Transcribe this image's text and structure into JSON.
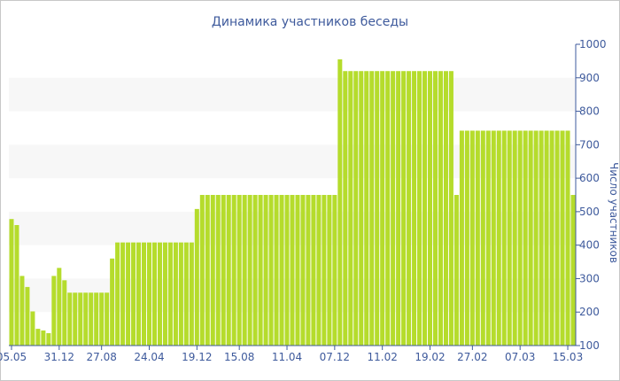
{
  "chart_data": {
    "type": "bar",
    "title": "Динамика участников беседы",
    "xlabel": "",
    "ylabel": "Число участников",
    "ylim": [
      100,
      1000
    ],
    "y_ticks": [
      100,
      200,
      300,
      400,
      500,
      600,
      700,
      800,
      900,
      1000
    ],
    "grid": "alternating horizontal bands",
    "bar_color": "#b5dc2c",
    "band_color": "#f7f7f7",
    "text_color": "#3e5a9c",
    "x_tick_labels": [
      {
        "label": "05.05",
        "index": 0
      },
      {
        "label": "31.12",
        "index": 9
      },
      {
        "label": "27.08",
        "index": 17
      },
      {
        "label": "24.04",
        "index": 26
      },
      {
        "label": "19.12",
        "index": 35
      },
      {
        "label": "15.08",
        "index": 43
      },
      {
        "label": "11.04",
        "index": 52
      },
      {
        "label": "07.12",
        "index": 61
      },
      {
        "label": "11.02",
        "index": 70
      },
      {
        "label": "19.02",
        "index": 79
      },
      {
        "label": "27.02",
        "index": 87
      },
      {
        "label": "07.03",
        "index": 96
      },
      {
        "label": "15.03",
        "index": 105
      }
    ],
    "values": [
      478,
      460,
      308,
      275,
      202,
      150,
      145,
      137,
      308,
      332,
      295,
      258,
      258,
      258,
      258,
      258,
      258,
      258,
      258,
      360,
      408,
      408,
      408,
      408,
      408,
      408,
      408,
      408,
      408,
      408,
      408,
      408,
      408,
      408,
      408,
      508,
      550,
      550,
      550,
      550,
      550,
      550,
      550,
      550,
      550,
      550,
      550,
      550,
      550,
      550,
      550,
      550,
      550,
      550,
      550,
      550,
      550,
      550,
      550,
      550,
      550,
      550,
      955,
      920,
      920,
      920,
      920,
      920,
      920,
      920,
      920,
      920,
      920,
      920,
      920,
      920,
      920,
      920,
      920,
      920,
      920,
      920,
      920,
      920,
      550,
      742,
      742,
      742,
      742,
      742,
      742,
      742,
      742,
      742,
      742,
      742,
      742,
      742,
      742,
      742,
      742,
      742,
      742,
      742,
      742,
      742,
      550
    ]
  }
}
